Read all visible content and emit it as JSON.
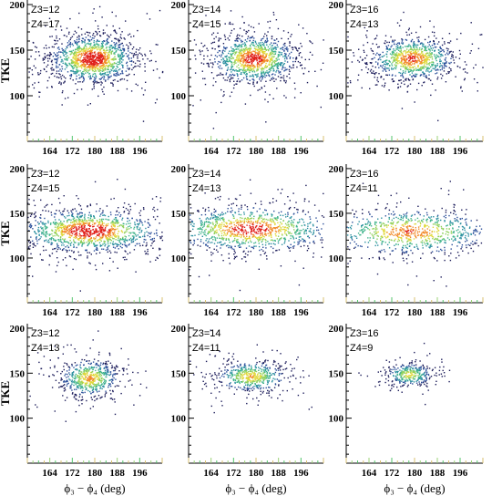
{
  "chart_data": [
    {
      "type": "scatter",
      "z3_label": "Z3=12",
      "z4_label": "Z4=17",
      "center": [
        179,
        141
      ],
      "spread": [
        7,
        12
      ],
      "density": 1.0,
      "xlim": [
        156,
        204
      ],
      "ylim": [
        50,
        205
      ],
      "xticks": [
        164,
        172,
        180,
        188,
        196
      ],
      "yticks": [
        100,
        150,
        200
      ],
      "ylabel": "TKE",
      "xlabel": ""
    },
    {
      "type": "scatter",
      "z3_label": "Z3=14",
      "z4_label": "Z4=15",
      "center": [
        179,
        141
      ],
      "spread": [
        7,
        12
      ],
      "density": 0.85,
      "xlim": [
        156,
        204
      ],
      "ylim": [
        50,
        205
      ],
      "xticks": [
        164,
        172,
        180,
        188,
        196
      ],
      "yticks": [
        100,
        150,
        200
      ],
      "ylabel": "",
      "xlabel": ""
    },
    {
      "type": "scatter",
      "z3_label": "Z3=16",
      "z4_label": "Z4=13",
      "center": [
        179,
        141
      ],
      "spread": [
        7,
        11
      ],
      "density": 0.7,
      "xlim": [
        156,
        204
      ],
      "ylim": [
        50,
        205
      ],
      "xticks": [
        164,
        172,
        180,
        188,
        196
      ],
      "yticks": [
        100,
        150,
        200
      ],
      "ylabel": "",
      "xlabel": ""
    },
    {
      "type": "scatter",
      "z3_label": "Z3=12",
      "z4_label": "Z4=15",
      "center": [
        178,
        131
      ],
      "spread": [
        12,
        11
      ],
      "density": 1.0,
      "xlim": [
        156,
        204
      ],
      "ylim": [
        50,
        205
      ],
      "xticks": [
        164,
        172,
        180,
        188,
        196
      ],
      "yticks": [
        100,
        150,
        200
      ],
      "ylabel": "TKE",
      "xlabel": ""
    },
    {
      "type": "scatter",
      "z3_label": "Z3=14",
      "z4_label": "Z4=13",
      "center": [
        178,
        133
      ],
      "spread": [
        14,
        12
      ],
      "density": 0.85,
      "xlim": [
        156,
        204
      ],
      "ylim": [
        50,
        205
      ],
      "xticks": [
        164,
        172,
        180,
        188,
        196
      ],
      "yticks": [
        100,
        150,
        200
      ],
      "ylabel": "",
      "xlabel": ""
    },
    {
      "type": "scatter",
      "z3_label": "Z3=16",
      "z4_label": "Z4=11",
      "center": [
        178,
        130
      ],
      "spread": [
        14,
        12
      ],
      "density": 0.65,
      "xlim": [
        156,
        204
      ],
      "ylim": [
        50,
        205
      ],
      "xticks": [
        164,
        172,
        180,
        188,
        196
      ],
      "yticks": [
        100,
        150,
        200
      ],
      "ylabel": "",
      "xlabel": ""
    },
    {
      "type": "scatter",
      "z3_label": "Z3=12",
      "z4_label": "Z4=13",
      "center": [
        178,
        145
      ],
      "spread": [
        5,
        10
      ],
      "density": 0.45,
      "xlim": [
        156,
        204
      ],
      "ylim": [
        50,
        205
      ],
      "xticks": [
        164,
        172,
        180,
        188,
        196
      ],
      "yticks": [
        100,
        150,
        200
      ],
      "ylabel": "TKE",
      "xlabel": "ϕ₃ − ϕ₄ (deg)"
    },
    {
      "type": "scatter",
      "z3_label": "Z3=14",
      "z4_label": "Z4=11",
      "center": [
        178,
        147
      ],
      "spread": [
        6,
        8
      ],
      "density": 0.4,
      "xlim": [
        156,
        204
      ],
      "ylim": [
        50,
        205
      ],
      "xticks": [
        164,
        172,
        180,
        188,
        196
      ],
      "yticks": [
        100,
        150,
        200
      ],
      "ylabel": "",
      "xlabel": "ϕ₃ − ϕ₄ (deg)"
    },
    {
      "type": "scatter",
      "z3_label": "Z3=16",
      "z4_label": "Z4=9",
      "center": [
        178,
        149
      ],
      "spread": [
        4,
        6
      ],
      "density": 0.25,
      "xlim": [
        156,
        204
      ],
      "ylim": [
        50,
        205
      ],
      "xticks": [
        164,
        172,
        180,
        188,
        196
      ],
      "yticks": [
        100,
        150,
        200
      ],
      "ylabel": "",
      "xlabel": "ϕ₃ − ϕ₄ (deg)"
    }
  ],
  "colors": {
    "frame": "#000000",
    "tick_ramp": [
      "#d8c070",
      "#9ed37a",
      "#54c46b"
    ],
    "density_ramp": [
      "#1c1c5a",
      "#2b4f9a",
      "#2b8fa0",
      "#3fb38a",
      "#8fd05a",
      "#e0d83a",
      "#f28a2a",
      "#e0201a"
    ]
  }
}
